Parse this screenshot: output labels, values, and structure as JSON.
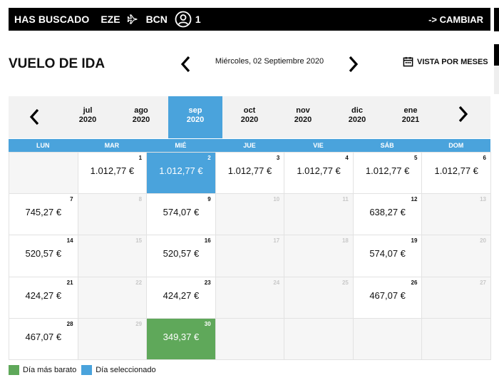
{
  "header": {
    "label": "HAS BUSCADO",
    "origin": "EZE",
    "destination": "BCN",
    "passengers": "1",
    "change_label": "-> CAMBIAR"
  },
  "page": {
    "title": "VUELO DE IDA",
    "current_date": "Miércoles, 02 Septiembre 2020",
    "months_view_label": "VISTA POR MESES"
  },
  "months": [
    {
      "name": "jul",
      "year": "2020"
    },
    {
      "name": "ago",
      "year": "2020"
    },
    {
      "name": "sep",
      "year": "2020",
      "selected": true
    },
    {
      "name": "oct",
      "year": "2020"
    },
    {
      "name": "nov",
      "year": "2020"
    },
    {
      "name": "dic",
      "year": "2020"
    },
    {
      "name": "ene",
      "year": "2021"
    }
  ],
  "weekdays": [
    "LUN",
    "MAR",
    "MIÉ",
    "JUE",
    "VIE",
    "SÁB",
    "DOM"
  ],
  "calendar": {
    "first_weekday_offset": 1,
    "selected_day": 2,
    "cheapest_day": 30,
    "days": [
      {
        "day": 1,
        "price": "1.012,77 €"
      },
      {
        "day": 2,
        "price": "1.012,77 €"
      },
      {
        "day": 3,
        "price": "1.012,77 €"
      },
      {
        "day": 4,
        "price": "1.012,77 €"
      },
      {
        "day": 5,
        "price": "1.012,77 €"
      },
      {
        "day": 6,
        "price": "1.012,77 €"
      },
      {
        "day": 7,
        "price": "745,27 €"
      },
      {
        "day": 8,
        "price": ""
      },
      {
        "day": 9,
        "price": "574,07 €"
      },
      {
        "day": 10,
        "price": ""
      },
      {
        "day": 11,
        "price": ""
      },
      {
        "day": 12,
        "price": "638,27 €"
      },
      {
        "day": 13,
        "price": ""
      },
      {
        "day": 14,
        "price": "520,57 €"
      },
      {
        "day": 15,
        "price": ""
      },
      {
        "day": 16,
        "price": "520,57 €"
      },
      {
        "day": 17,
        "price": ""
      },
      {
        "day": 18,
        "price": ""
      },
      {
        "day": 19,
        "price": "574,07 €"
      },
      {
        "day": 20,
        "price": ""
      },
      {
        "day": 21,
        "price": "424,27 €"
      },
      {
        "day": 22,
        "price": ""
      },
      {
        "day": 23,
        "price": "424,27 €"
      },
      {
        "day": 24,
        "price": ""
      },
      {
        "day": 25,
        "price": ""
      },
      {
        "day": 26,
        "price": "467,07 €"
      },
      {
        "day": 27,
        "price": ""
      },
      {
        "day": 28,
        "price": "467,07 €"
      },
      {
        "day": 29,
        "price": ""
      },
      {
        "day": 30,
        "price": "349,37 €"
      }
    ]
  },
  "legend": {
    "cheapest_label": "Día más barato",
    "selected_label": "Día seleccionado",
    "cheapest_color": "#5fa85a",
    "selected_color": "#4aa3dc"
  },
  "icons": {
    "route": "airplane-icon",
    "passengers": "user-circle-icon",
    "months_view": "calendar-icon",
    "prev": "chevron-left-icon",
    "next": "chevron-right-icon"
  }
}
